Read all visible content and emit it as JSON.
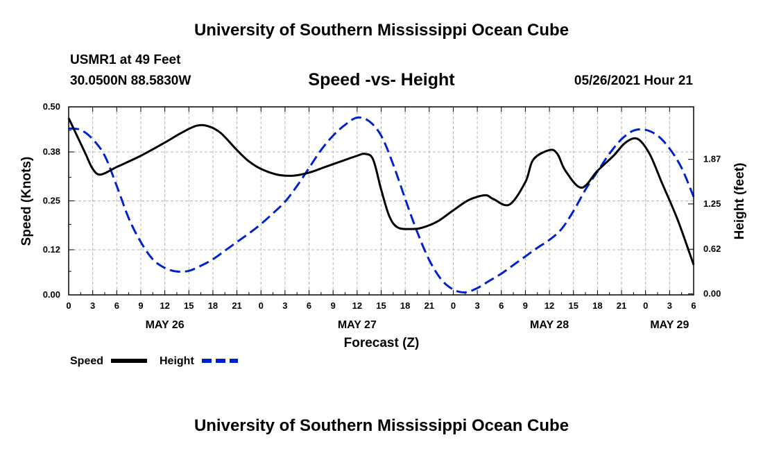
{
  "header": {
    "title": "University of Southern Mississippi Ocean Cube",
    "station": "USMR1 at 49 Feet",
    "coordinates": "30.0500N  88.5830W",
    "subtitle": "Speed -vs- Height",
    "datestamp": "05/26/2021 Hour 21"
  },
  "footer": {
    "title": "University of Southern Mississippi Ocean Cube"
  },
  "colors": {
    "speed": "#000000",
    "height": "#0022cc",
    "grid": "#b4b4b4"
  },
  "chart_data": {
    "type": "line",
    "title": "Speed -vs- Height",
    "xlabel": "Forecast (Z)",
    "ylabel": "Speed (Knots)",
    "y2label": "Height (feet)",
    "xlim": [
      0,
      78
    ],
    "ylim": [
      0,
      0.5
    ],
    "y2lim": [
      -0.015,
      2.6
    ],
    "x_ticks": [
      0,
      3,
      6,
      9,
      12,
      15,
      18,
      21,
      24,
      27,
      30,
      33,
      36,
      39,
      42,
      45,
      48,
      51,
      54,
      57,
      60,
      63,
      66,
      69,
      72,
      75,
      78
    ],
    "x_tick_labels": [
      "0",
      "3",
      "6",
      "9",
      "12",
      "15",
      "18",
      "21",
      "0",
      "3",
      "6",
      "9",
      "12",
      "15",
      "18",
      "21",
      "0",
      "3",
      "6",
      "9",
      "12",
      "15",
      "18",
      "21",
      "0",
      "3",
      "6"
    ],
    "date_labels": [
      {
        "label": "MAY 26",
        "x": 12
      },
      {
        "label": "MAY 27",
        "x": 36
      },
      {
        "label": "MAY 28",
        "x": 60
      },
      {
        "label": "MAY 29",
        "x": 75
      }
    ],
    "y_ticks": [
      0.0,
      0.12,
      0.25,
      0.38,
      0.5
    ],
    "y_tick_labels": [
      "0.00",
      "0.12",
      "0.25",
      "0.38",
      "0.50"
    ],
    "y2_ticks": [
      0.0,
      0.62,
      1.25,
      1.87
    ],
    "y2_tick_labels": [
      "0.00",
      "0.62",
      "1.25",
      "1.87"
    ],
    "grid": true,
    "legend": [
      {
        "name": "Speed",
        "style": "solid"
      },
      {
        "name": "Height",
        "style": "dashed"
      }
    ],
    "series": [
      {
        "name": "Speed",
        "axis": "left",
        "x": [
          0,
          2,
          3,
          4,
          6,
          9,
          12,
          14,
          16,
          17.5,
          19,
          21,
          22.5,
          24,
          26,
          28,
          30,
          32,
          34,
          36,
          37,
          38,
          39,
          40,
          41,
          42.5,
          44,
          46,
          48,
          50,
          52,
          53,
          55,
          57,
          58,
          60,
          61,
          62,
          64,
          66,
          68,
          69.5,
          71,
          72.5,
          74,
          76,
          78
        ],
        "values": [
          0.47,
          0.38,
          0.335,
          0.32,
          0.34,
          0.37,
          0.405,
          0.43,
          0.45,
          0.448,
          0.43,
          0.385,
          0.355,
          0.335,
          0.32,
          0.317,
          0.325,
          0.34,
          0.355,
          0.37,
          0.375,
          0.36,
          0.28,
          0.21,
          0.18,
          0.175,
          0.178,
          0.195,
          0.225,
          0.253,
          0.265,
          0.255,
          0.24,
          0.3,
          0.36,
          0.385,
          0.375,
          0.33,
          0.285,
          0.33,
          0.37,
          0.405,
          0.415,
          0.375,
          0.3,
          0.2,
          0.08
        ]
      },
      {
        "name": "Height",
        "axis": "right",
        "x": [
          0,
          1.5,
          3,
          4.5,
          6,
          7.5,
          9,
          10.5,
          12,
          13.5,
          15,
          16.5,
          18,
          19.5,
          21,
          22.5,
          24,
          25.5,
          27,
          28.5,
          30,
          31.5,
          33,
          34.5,
          36,
          37.5,
          39,
          40.5,
          42,
          43.5,
          45,
          46.5,
          48,
          49.5,
          51,
          52.5,
          54,
          55.5,
          57,
          58.5,
          60,
          61.5,
          63,
          64.5,
          66,
          67.5,
          69,
          70.5,
          72,
          73.5,
          75,
          76.5,
          78
        ],
        "values": [
          2.3,
          2.28,
          2.15,
          1.92,
          1.5,
          1.05,
          0.72,
          0.48,
          0.36,
          0.31,
          0.32,
          0.39,
          0.48,
          0.6,
          0.72,
          0.84,
          0.97,
          1.12,
          1.28,
          1.5,
          1.75,
          2.0,
          2.2,
          2.35,
          2.45,
          2.4,
          2.2,
          1.8,
          1.32,
          0.86,
          0.47,
          0.2,
          0.06,
          0.02,
          0.08,
          0.18,
          0.28,
          0.4,
          0.52,
          0.64,
          0.75,
          0.9,
          1.15,
          1.45,
          1.7,
          1.95,
          2.15,
          2.27,
          2.28,
          2.2,
          2.02,
          1.75,
          1.35
        ]
      }
    ]
  }
}
